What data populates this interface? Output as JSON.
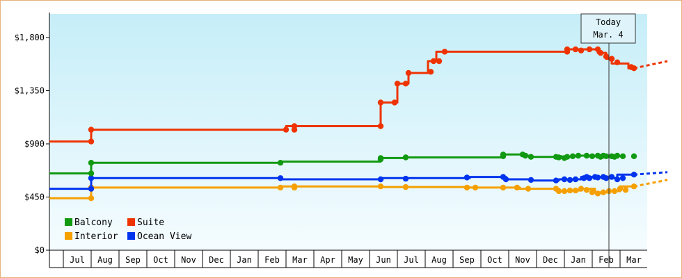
{
  "chart_data": {
    "type": "line",
    "title": "",
    "xlabel": "",
    "ylabel": "",
    "ylim": [
      0,
      2000
    ],
    "y_ticks": [
      {
        "value": 0,
        "label": "$0"
      },
      {
        "value": 450,
        "label": "$450"
      },
      {
        "value": 900,
        "label": "$900"
      },
      {
        "value": 1350,
        "label": "$1,350"
      },
      {
        "value": 1800,
        "label": "$1,800"
      }
    ],
    "x_range_months": [
      0,
      21.6
    ],
    "x_ticks": [
      "Jul",
      "Aug",
      "Sep",
      "Oct",
      "Nov",
      "Dec",
      "Jan",
      "Feb",
      "Mar",
      "Apr",
      "May",
      "Jun",
      "Jul",
      "Aug",
      "Sep",
      "Oct",
      "Nov",
      "Dec",
      "Jan",
      "Feb",
      "Mar"
    ],
    "grid": false,
    "legend_position": "bottom-left",
    "background": {
      "top": "#c6eef8",
      "bottom": "#f5fcff"
    },
    "today": {
      "label": "Today",
      "date": "Mar. 4",
      "x": 20.1
    },
    "series": [
      {
        "name": "Balcony",
        "color": "#119911",
        "points": [
          [
            0,
            650
          ],
          [
            1.5,
            650
          ],
          [
            1.5,
            740
          ],
          [
            8.3,
            740
          ],
          [
            8.3,
            750
          ],
          [
            11.9,
            750
          ],
          [
            11.9,
            780
          ],
          [
            12.8,
            780
          ],
          [
            12.8,
            785
          ],
          [
            16.3,
            785
          ],
          [
            16.3,
            810
          ],
          [
            17.0,
            810
          ],
          [
            17.0,
            800
          ],
          [
            17.3,
            800
          ],
          [
            17.3,
            790
          ],
          [
            18.2,
            790
          ],
          [
            18.2,
            795
          ],
          [
            18.4,
            795
          ],
          [
            18.4,
            780
          ],
          [
            18.6,
            780
          ],
          [
            18.6,
            790
          ],
          [
            18.8,
            790
          ],
          [
            18.8,
            795
          ],
          [
            19.0,
            795
          ],
          [
            19.0,
            800
          ],
          [
            20.1,
            800
          ]
        ],
        "markers": [
          [
            1.5,
            650
          ],
          [
            1.5,
            740
          ],
          [
            8.3,
            740
          ],
          [
            11.9,
            770
          ],
          [
            11.9,
            780
          ],
          [
            12.8,
            785
          ],
          [
            16.3,
            795
          ],
          [
            16.3,
            810
          ],
          [
            17.0,
            810
          ],
          [
            17.1,
            800
          ],
          [
            17.3,
            790
          ],
          [
            18.2,
            790
          ],
          [
            18.3,
            785
          ],
          [
            18.5,
            780
          ],
          [
            18.6,
            790
          ],
          [
            18.8,
            795
          ],
          [
            19.0,
            800
          ],
          [
            19.3,
            800
          ],
          [
            19.5,
            795
          ],
          [
            19.7,
            800
          ],
          [
            19.8,
            790
          ],
          [
            19.9,
            800
          ],
          [
            20.0,
            795
          ],
          [
            20.2,
            795
          ],
          [
            20.3,
            790
          ],
          [
            20.4,
            800
          ],
          [
            20.6,
            795
          ],
          [
            21.0,
            795
          ]
        ],
        "projection": []
      },
      {
        "name": "Suite",
        "color": "#ee3300",
        "points": [
          [
            0,
            920
          ],
          [
            1.5,
            920
          ],
          [
            1.5,
            1020
          ],
          [
            8.5,
            1020
          ],
          [
            8.5,
            1050
          ],
          [
            11.9,
            1050
          ],
          [
            11.9,
            1250
          ],
          [
            12.5,
            1250
          ],
          [
            12.5,
            1410
          ],
          [
            12.9,
            1410
          ],
          [
            12.9,
            1500
          ],
          [
            13.6,
            1500
          ],
          [
            13.6,
            1600
          ],
          [
            13.9,
            1600
          ],
          [
            13.9,
            1680
          ],
          [
            18.6,
            1680
          ],
          [
            18.6,
            1700
          ],
          [
            19.7,
            1700
          ],
          [
            19.7,
            1670
          ],
          [
            20.0,
            1670
          ],
          [
            20.0,
            1620
          ],
          [
            20.2,
            1620
          ],
          [
            20.2,
            1580
          ],
          [
            20.8,
            1580
          ],
          [
            20.8,
            1540
          ],
          [
            21.0,
            1540
          ]
        ],
        "markers": [
          [
            1.5,
            920
          ],
          [
            1.5,
            1020
          ],
          [
            8.5,
            1020
          ],
          [
            8.8,
            1020
          ],
          [
            8.8,
            1050
          ],
          [
            11.9,
            1050
          ],
          [
            11.9,
            1250
          ],
          [
            12.4,
            1250
          ],
          [
            12.5,
            1410
          ],
          [
            12.8,
            1410
          ],
          [
            12.9,
            1500
          ],
          [
            13.7,
            1510
          ],
          [
            13.8,
            1600
          ],
          [
            14.0,
            1600
          ],
          [
            14.2,
            1680
          ],
          [
            18.6,
            1680
          ],
          [
            18.6,
            1700
          ],
          [
            18.9,
            1700
          ],
          [
            19.1,
            1690
          ],
          [
            19.4,
            1700
          ],
          [
            19.7,
            1700
          ],
          [
            19.8,
            1670
          ],
          [
            20.0,
            1640
          ],
          [
            20.2,
            1620
          ],
          [
            20.4,
            1590
          ],
          [
            20.9,
            1550
          ],
          [
            21.0,
            1540
          ]
        ],
        "projection": [
          [
            21.0,
            1540
          ],
          [
            22.2,
            1600
          ]
        ]
      },
      {
        "name": "Interior",
        "color": "#f5a000",
        "points": [
          [
            0,
            440
          ],
          [
            1.5,
            440
          ],
          [
            1.5,
            530
          ],
          [
            8.3,
            530
          ],
          [
            8.3,
            540
          ],
          [
            11.9,
            540
          ],
          [
            11.9,
            535
          ],
          [
            15.1,
            535
          ],
          [
            15.1,
            530
          ],
          [
            16.9,
            530
          ],
          [
            16.9,
            520
          ],
          [
            18.3,
            520
          ],
          [
            18.3,
            500
          ],
          [
            18.7,
            500
          ],
          [
            18.7,
            505
          ],
          [
            19.1,
            505
          ],
          [
            19.1,
            520
          ],
          [
            19.6,
            520
          ],
          [
            19.6,
            490
          ],
          [
            20.1,
            490
          ],
          [
            20.1,
            500
          ],
          [
            20.5,
            500
          ],
          [
            20.5,
            540
          ],
          [
            21.0,
            540
          ]
        ],
        "markers": [
          [
            1.5,
            440
          ],
          [
            1.5,
            530
          ],
          [
            8.3,
            530
          ],
          [
            8.8,
            530
          ],
          [
            8.8,
            540
          ],
          [
            11.9,
            540
          ],
          [
            12.8,
            535
          ],
          [
            15.0,
            530
          ],
          [
            15.3,
            530
          ],
          [
            16.3,
            530
          ],
          [
            16.8,
            530
          ],
          [
            17.2,
            520
          ],
          [
            18.2,
            520
          ],
          [
            18.3,
            500
          ],
          [
            18.5,
            500
          ],
          [
            18.7,
            505
          ],
          [
            18.9,
            505
          ],
          [
            19.1,
            520
          ],
          [
            19.3,
            510
          ],
          [
            19.5,
            490
          ],
          [
            19.7,
            480
          ],
          [
            19.9,
            490
          ],
          [
            20.1,
            500
          ],
          [
            20.3,
            500
          ],
          [
            20.5,
            520
          ],
          [
            20.7,
            510
          ],
          [
            21.0,
            540
          ]
        ],
        "projection": [
          [
            21.0,
            540
          ],
          [
            22.2,
            595
          ]
        ]
      },
      {
        "name": "Ocean View",
        "color": "#0033ee",
        "points": [
          [
            0,
            520
          ],
          [
            1.5,
            520
          ],
          [
            1.5,
            610
          ],
          [
            8.3,
            610
          ],
          [
            8.3,
            600
          ],
          [
            11.9,
            600
          ],
          [
            11.9,
            610
          ],
          [
            15.1,
            610
          ],
          [
            15.1,
            620
          ],
          [
            16.4,
            620
          ],
          [
            16.4,
            600
          ],
          [
            17.3,
            600
          ],
          [
            17.3,
            590
          ],
          [
            18.3,
            590
          ],
          [
            18.3,
            600
          ],
          [
            19.1,
            600
          ],
          [
            19.1,
            620
          ],
          [
            20.1,
            620
          ],
          [
            20.1,
            610
          ],
          [
            20.4,
            610
          ],
          [
            20.4,
            640
          ],
          [
            21.0,
            640
          ]
        ],
        "markers": [
          [
            1.5,
            520
          ],
          [
            1.5,
            610
          ],
          [
            8.3,
            610
          ],
          [
            11.9,
            600
          ],
          [
            12.8,
            605
          ],
          [
            15.0,
            615
          ],
          [
            16.3,
            620
          ],
          [
            16.4,
            600
          ],
          [
            17.3,
            595
          ],
          [
            18.2,
            590
          ],
          [
            18.5,
            600
          ],
          [
            18.7,
            595
          ],
          [
            18.9,
            600
          ],
          [
            19.2,
            610
          ],
          [
            19.3,
            620
          ],
          [
            19.4,
            610
          ],
          [
            19.6,
            620
          ],
          [
            19.7,
            615
          ],
          [
            19.9,
            620
          ],
          [
            20.0,
            610
          ],
          [
            20.2,
            620
          ],
          [
            20.4,
            600
          ],
          [
            20.6,
            610
          ],
          [
            21.0,
            640
          ]
        ],
        "projection": [
          [
            21.0,
            640
          ],
          [
            22.2,
            660
          ]
        ]
      }
    ]
  }
}
